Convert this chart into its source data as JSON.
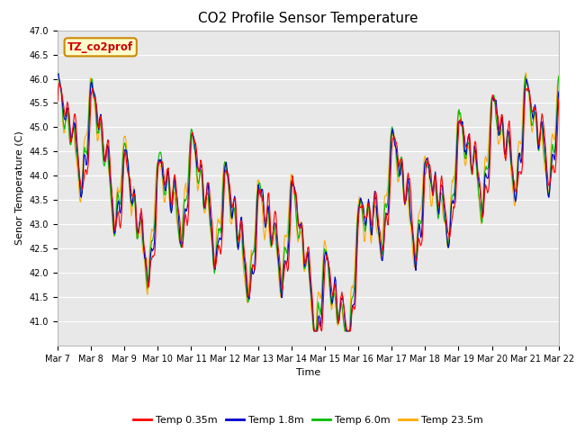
{
  "title": "CO2 Profile Sensor Temperature",
  "ylabel": "Senor Temperature (C)",
  "xlabel": "Time",
  "legend_label": "TZ_co2prof",
  "ylim": [
    40.5,
    47.0
  ],
  "yticks": [
    41.0,
    41.5,
    42.0,
    42.5,
    43.0,
    43.5,
    44.0,
    44.5,
    45.0,
    45.5,
    46.0,
    46.5,
    47.0
  ],
  "x_tick_labels": [
    "Mar 7",
    "Mar 8",
    "Mar 9",
    "Mar 10",
    "Mar 11",
    "Mar 12",
    "Mar 13",
    "Mar 14",
    "Mar 15",
    "Mar 16",
    "Mar 17",
    "Mar 18",
    "Mar 19",
    "Mar 20",
    "Mar 21",
    "Mar 22"
  ],
  "line_colors": [
    "#ff0000",
    "#0000cc",
    "#00bb00",
    "#ffaa00"
  ],
  "line_labels": [
    "Temp 0.35m",
    "Temp 1.8m",
    "Temp 6.0m",
    "Temp 23.5m"
  ],
  "bg_color": "#e8e8e8",
  "fig_color": "#ffffff",
  "legend_box_color": "#ffffcc",
  "legend_box_edge": "#cc8800",
  "n_points": 720,
  "grid_color": "#ffffff",
  "title_fontsize": 11,
  "tick_fontsize": 7,
  "ylabel_fontsize": 8,
  "xlabel_fontsize": 8
}
